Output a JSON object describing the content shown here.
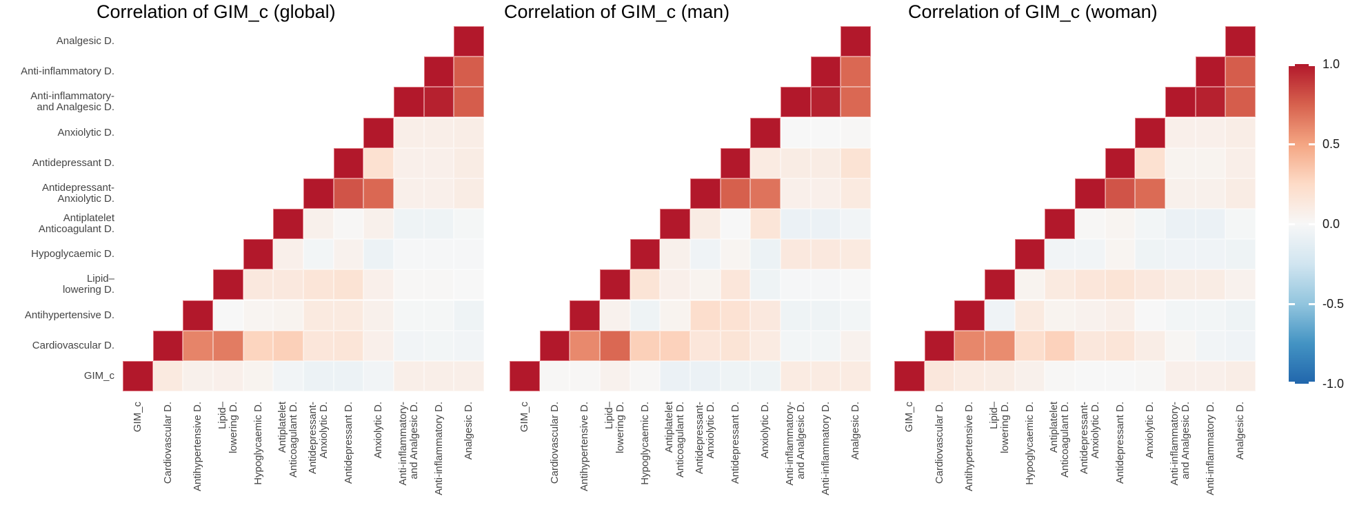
{
  "chart_data": {
    "type": "heatmap",
    "subtype": "triangular-correlation-matrix",
    "facets": [
      {
        "title": "Correlation of GIM_c (global)",
        "matrix_from_diagonal": [
          [
            1,
            0.12,
            0.06,
            0.07,
            0.04,
            -0.04,
            -0.07,
            -0.07,
            -0.04,
            0.08,
            0.08,
            0.08
          ],
          [
            1,
            0.62,
            0.65,
            0.28,
            0.3,
            0.15,
            0.16,
            0.07,
            -0.04,
            -0.03,
            -0.04
          ],
          [
            1,
            0.0,
            0.03,
            0.04,
            0.12,
            0.12,
            0.06,
            -0.02,
            -0.02,
            -0.06
          ],
          [
            1,
            0.13,
            0.13,
            0.16,
            0.18,
            0.07,
            0.01,
            0.01,
            0.0
          ],
          [
            1,
            0.07,
            -0.03,
            0.05,
            -0.07,
            -0.01,
            -0.01,
            -0.01
          ],
          [
            1,
            0.06,
            0.01,
            0.06,
            -0.06,
            -0.06,
            -0.02
          ],
          [
            1,
            0.79,
            0.72,
            0.07,
            0.07,
            0.1
          ],
          [
            1,
            0.2,
            0.07,
            0.07,
            0.1
          ],
          [
            1,
            0.08,
            0.08,
            0.09
          ],
          [
            1,
            0.97,
            0.76
          ],
          [
            1,
            0.76
          ],
          [
            1
          ]
        ]
      },
      {
        "title": "Correlation of GIM_c (man)",
        "matrix_from_diagonal": [
          [
            1,
            0.01,
            0.01,
            0.05,
            0.01,
            -0.08,
            -0.08,
            -0.06,
            -0.06,
            0.11,
            0.11,
            0.11
          ],
          [
            1,
            0.6,
            0.72,
            0.3,
            0.29,
            0.15,
            0.17,
            0.11,
            -0.03,
            -0.03,
            0.05
          ],
          [
            1,
            0.05,
            -0.06,
            0.04,
            0.22,
            0.19,
            0.13,
            -0.06,
            -0.06,
            -0.03
          ],
          [
            1,
            0.17,
            0.07,
            0.04,
            0.15,
            -0.06,
            -0.01,
            -0.01,
            0.0
          ],
          [
            1,
            0.06,
            -0.05,
            0.03,
            -0.07,
            0.13,
            0.13,
            0.12
          ],
          [
            1,
            0.1,
            0.0,
            0.16,
            -0.08,
            -0.08,
            -0.04
          ],
          [
            1,
            0.75,
            0.68,
            0.07,
            0.07,
            0.12
          ],
          [
            1,
            0.11,
            0.1,
            0.1,
            0.18
          ],
          [
            1,
            0.0,
            0.0,
            0.01
          ],
          [
            1,
            0.97,
            0.72
          ],
          [
            1,
            0.72
          ],
          [
            1
          ]
        ]
      },
      {
        "title": "Correlation of GIM_c (woman)",
        "matrix_from_diagonal": [
          [
            1,
            0.14,
            0.11,
            0.1,
            0.06,
            0.01,
            0.0,
            0.0,
            0.01,
            0.07,
            0.07,
            0.09
          ],
          [
            1,
            0.61,
            0.59,
            0.22,
            0.29,
            0.14,
            0.16,
            0.09,
            0.02,
            -0.04,
            -0.05
          ],
          [
            1,
            -0.05,
            0.12,
            0.04,
            0.05,
            0.08,
            0.0,
            -0.03,
            -0.03,
            -0.06
          ],
          [
            1,
            0.04,
            0.12,
            0.15,
            0.17,
            0.13,
            0.1,
            0.1,
            0.05
          ],
          [
            1,
            -0.04,
            -0.04,
            0.03,
            -0.06,
            -0.05,
            -0.05,
            -0.06
          ],
          [
            1,
            0.01,
            0.03,
            -0.03,
            -0.08,
            -0.08,
            -0.02
          ],
          [
            1,
            0.79,
            0.71,
            0.06,
            0.06,
            0.1
          ],
          [
            1,
            0.2,
            0.04,
            0.04,
            0.08
          ],
          [
            1,
            0.07,
            0.07,
            0.09
          ],
          [
            1,
            0.97,
            0.76
          ],
          [
            1,
            0.76
          ],
          [
            1
          ]
        ]
      }
    ],
    "variables": [
      {
        "id": "GIM_c",
        "lines": [
          "GIM_c"
        ]
      },
      {
        "id": "Cardiovascular D.",
        "lines": [
          "Cardiovascular D."
        ]
      },
      {
        "id": "Antihypertensive D.",
        "lines": [
          "Antihypertensive D."
        ]
      },
      {
        "id": "Lipid-lowering D.",
        "lines": [
          "Lipid–",
          "lowering D."
        ]
      },
      {
        "id": "Hypoglycaemic D.",
        "lines": [
          "Hypoglycaemic D."
        ]
      },
      {
        "id": "Antiplatelet Anticoagulant D.",
        "lines": [
          "Antiplatelet",
          "Anticoagulant D."
        ]
      },
      {
        "id": "Antidepressant-Anxiolytic D.",
        "lines": [
          "Antidepressant-",
          "Anxiolytic D."
        ]
      },
      {
        "id": "Antidepressant D.",
        "lines": [
          "Antidepressant D."
        ]
      },
      {
        "id": "Anxiolytic D.",
        "lines": [
          "Anxiolytic D."
        ]
      },
      {
        "id": "Anti-inflammatory- and Analgesic D.",
        "lines": [
          "Anti-inflammatory-",
          "and Analgesic D."
        ]
      },
      {
        "id": "Anti-inflammatory D.",
        "lines": [
          "Anti-inflammatory D."
        ]
      },
      {
        "id": "Analgesic D.",
        "lines": [
          "Analgesic D."
        ]
      }
    ],
    "triangle_rule": "cell shown for variable pair (i,j) with j >= i; x axis ordered GIM_c..Analgesic, y axis ordered Analgesic..GIM_c (diagonal bottom-left to top-right)",
    "colorscale": {
      "name": "RdBu",
      "domain": [
        -1,
        1
      ],
      "stops": [
        {
          "value": -1.0,
          "color": "#2166ac"
        },
        {
          "value": -0.75,
          "color": "#4393c3"
        },
        {
          "value": -0.5,
          "color": "#92c5de"
        },
        {
          "value": -0.25,
          "color": "#d1e5f0"
        },
        {
          "value": 0.0,
          "color": "#f7f7f7"
        },
        {
          "value": 0.25,
          "color": "#fddbc7"
        },
        {
          "value": 0.5,
          "color": "#f4a582"
        },
        {
          "value": 0.75,
          "color": "#d6604d"
        },
        {
          "value": 1.0,
          "color": "#b2182b"
        }
      ]
    },
    "colorbar": {
      "ticks": [
        {
          "label": "1.0",
          "value": 1.0
        },
        {
          "label": "0.5",
          "value": 0.5
        },
        {
          "label": "0.0",
          "value": 0.0
        },
        {
          "label": "-0.5",
          "value": -0.5
        },
        {
          "label": "-1.0",
          "value": -1.0
        }
      ]
    },
    "text_colors": {
      "title": "#000000",
      "axis_labels": "#444444",
      "colorbar_ticks": "#1a1a1a"
    },
    "grid": "thin white gaps between cells",
    "legend_position": "right colorbar"
  }
}
